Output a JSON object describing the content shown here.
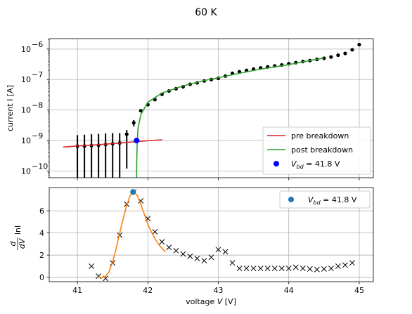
{
  "figure": {
    "title": "60 K"
  },
  "chart_data": [
    {
      "type": "scatter",
      "yscale": "log",
      "xlim": [
        40.6,
        45.2
      ],
      "ylim": [
        6e-11,
        2.2e-06
      ],
      "grid": true,
      "xlabel": "",
      "ylabel": "current I [A]",
      "yticks": [
        {
          "value": 1e-10,
          "mant": "10",
          "exp": "−10"
        },
        {
          "value": 1e-09,
          "mant": "10",
          "exp": "−9"
        },
        {
          "value": 1e-08,
          "mant": "10",
          "exp": "−8"
        },
        {
          "value": 1e-07,
          "mant": "10",
          "exp": "−7"
        },
        {
          "value": 1e-06,
          "mant": "10",
          "exp": "−6"
        }
      ],
      "legend_position": "lower right",
      "legend": [
        {
          "label": "pre breakdown",
          "color": "#d62728",
          "kind": "line"
        },
        {
          "label": "post breakdown",
          "color": "#2ca02c",
          "kind": "line"
        },
        {
          "label_prefix": "V",
          "label_sub": "bd",
          "label_suffix": " = 41.8 V",
          "color": "#0000ff",
          "kind": "dot"
        }
      ],
      "series": [
        {
          "kind": "errorbar",
          "color": "#000000",
          "points": [
            {
              "x": 41.0,
              "y": 6.5e-10,
              "lo": 5e-11,
              "hi": 1.5e-09
            },
            {
              "x": 41.1,
              "y": 6.6e-10,
              "lo": 5e-11,
              "hi": 1.55e-09
            },
            {
              "x": 41.2,
              "y": 6.8e-10,
              "lo": 5e-11,
              "hi": 1.6e-09
            },
            {
              "x": 41.3,
              "y": 7e-10,
              "lo": 5e-11,
              "hi": 1.65e-09
            },
            {
              "x": 41.4,
              "y": 7.4e-10,
              "lo": 5e-11,
              "hi": 1.7e-09
            },
            {
              "x": 41.5,
              "y": 7.8e-10,
              "lo": 5e-11,
              "hi": 1.75e-09
            },
            {
              "x": 41.6,
              "y": 8.3e-10,
              "lo": 5e-11,
              "hi": 1.75e-09
            },
            {
              "x": 41.7,
              "y": 1.6e-09,
              "lo": 1.2e-10,
              "hi": 2.2e-09
            },
            {
              "x": 41.8,
              "y": 3.8e-09,
              "lo": 2.9e-09,
              "hi": 4.7e-09
            },
            {
              "x": 41.9,
              "y": 9.5e-09
            },
            {
              "x": 42.0,
              "y": 1.5e-08
            },
            {
              "x": 42.1,
              "y": 2.2e-08
            },
            {
              "x": 42.2,
              "y": 3.3e-08
            },
            {
              "x": 42.3,
              "y": 4.2e-08
            },
            {
              "x": 42.4,
              "y": 5e-08
            },
            {
              "x": 42.5,
              "y": 5.8e-08
            },
            {
              "x": 42.6,
              "y": 7e-08
            },
            {
              "x": 42.7,
              "y": 7.8e-08
            },
            {
              "x": 42.8,
              "y": 9e-08
            },
            {
              "x": 42.9,
              "y": 1e-07
            },
            {
              "x": 43.0,
              "y": 1.1e-07
            },
            {
              "x": 43.1,
              "y": 1.3e-07
            },
            {
              "x": 43.2,
              "y": 1.6e-07
            },
            {
              "x": 43.3,
              "y": 1.8e-07
            },
            {
              "x": 43.4,
              "y": 2e-07
            },
            {
              "x": 43.5,
              "y": 2.2e-07
            },
            {
              "x": 43.6,
              "y": 2.4e-07
            },
            {
              "x": 43.7,
              "y": 2.6e-07
            },
            {
              "x": 43.8,
              "y": 2.8e-07
            },
            {
              "x": 43.9,
              "y": 3e-07
            },
            {
              "x": 44.0,
              "y": 3.3e-07
            },
            {
              "x": 44.1,
              "y": 3.6e-07
            },
            {
              "x": 44.2,
              "y": 3.9e-07
            },
            {
              "x": 44.3,
              "y": 4.2e-07
            },
            {
              "x": 44.4,
              "y": 4.6e-07
            },
            {
              "x": 44.5,
              "y": 5e-07
            },
            {
              "x": 44.6,
              "y": 5.5e-07
            },
            {
              "x": 44.7,
              "y": 6.3e-07
            },
            {
              "x": 44.8,
              "y": 7.2e-07
            },
            {
              "x": 44.9,
              "y": 9.5e-07
            },
            {
              "x": 45.0,
              "y": 1.4e-06
            }
          ]
        },
        {
          "kind": "line",
          "name": "pre breakdown",
          "color": "#d62728",
          "points": [
            [
              40.8,
              6.1e-10
            ],
            [
              41.0,
              6.6e-10
            ],
            [
              41.3,
              7.3e-10
            ],
            [
              41.6,
              8.2e-10
            ],
            [
              41.8,
              9e-10
            ],
            [
              42.0,
              9.8e-10
            ],
            [
              42.2,
              1.05e-09
            ]
          ]
        },
        {
          "kind": "line",
          "name": "post breakdown",
          "color": "#2ca02c",
          "points": [
            [
              41.84,
              6e-11
            ],
            [
              41.842,
              2e-10
            ],
            [
              41.85,
              1e-09
            ],
            [
              41.86,
              2.5e-09
            ],
            [
              41.9,
              7e-09
            ],
            [
              42.0,
              1.8e-08
            ],
            [
              42.2,
              3.6e-08
            ],
            [
              42.5,
              6.2e-08
            ],
            [
              42.8,
              9.3e-08
            ],
            [
              43.0,
              1.15e-07
            ],
            [
              43.3,
              1.6e-07
            ],
            [
              43.6,
              2.2e-07
            ],
            [
              44.0,
              3.1e-07
            ],
            [
              44.3,
              4.2e-07
            ],
            [
              44.5,
              5.1e-07
            ]
          ]
        },
        {
          "kind": "point",
          "name": "V_bd = 41.8 V",
          "color": "#0000ff",
          "points": [
            [
              41.84,
              1e-09
            ]
          ]
        }
      ]
    },
    {
      "type": "scatter",
      "yscale": "linear",
      "xlim": [
        40.6,
        45.2
      ],
      "ylim": [
        -0.4,
        8.1
      ],
      "grid": true,
      "xlabel_prefix": "voltage ",
      "xlabel_var": "V",
      "xlabel_suffix": " [V]",
      "ylabel_frac_num": "d",
      "ylabel_frac_den": "dV",
      "ylabel_rest": "lnI",
      "xticks": [
        41,
        42,
        43,
        44,
        45
      ],
      "yticks": [
        0,
        2,
        4,
        6
      ],
      "legend_position": "upper right",
      "legend": [
        {
          "label_prefix": "V",
          "label_sub": "bd",
          "label_suffix": " = 41.8 V",
          "color": "#1f77b4",
          "kind": "dot"
        }
      ],
      "series": [
        {
          "kind": "marker_x",
          "color": "#000000",
          "points": [
            [
              41.2,
              1.0
            ],
            [
              41.3,
              0.1
            ],
            [
              41.4,
              -0.1
            ],
            [
              41.5,
              1.3
            ],
            [
              41.6,
              3.8
            ],
            [
              41.7,
              6.6
            ],
            [
              41.8,
              7.7
            ],
            [
              41.9,
              6.9
            ],
            [
              42.0,
              5.3
            ],
            [
              42.1,
              4.1
            ],
            [
              42.2,
              3.2
            ],
            [
              42.3,
              2.7
            ],
            [
              42.4,
              2.4
            ],
            [
              42.5,
              2.1
            ],
            [
              42.6,
              1.9
            ],
            [
              42.7,
              1.7
            ],
            [
              42.8,
              1.5
            ],
            [
              42.9,
              1.8
            ],
            [
              43.0,
              2.5
            ],
            [
              43.1,
              2.3
            ],
            [
              43.2,
              1.3
            ],
            [
              43.3,
              0.8
            ],
            [
              43.4,
              0.8
            ],
            [
              43.5,
              0.8
            ],
            [
              43.6,
              0.8
            ],
            [
              43.7,
              0.8
            ],
            [
              43.8,
              0.8
            ],
            [
              43.9,
              0.8
            ],
            [
              44.0,
              0.8
            ],
            [
              44.1,
              0.9
            ],
            [
              44.2,
              0.8
            ],
            [
              44.3,
              0.75
            ],
            [
              44.4,
              0.7
            ],
            [
              44.5,
              0.75
            ],
            [
              44.6,
              0.8
            ],
            [
              44.7,
              1.0
            ],
            [
              44.8,
              1.1
            ],
            [
              44.9,
              1.3
            ]
          ]
        },
        {
          "kind": "line",
          "color": "#ff7f0e",
          "points": [
            [
              41.3,
              0.05
            ],
            [
              41.35,
              -0.05
            ],
            [
              41.4,
              0.1
            ],
            [
              41.45,
              0.5
            ],
            [
              41.5,
              1.4
            ],
            [
              41.55,
              2.6
            ],
            [
              41.6,
              4.0
            ],
            [
              41.65,
              5.3
            ],
            [
              41.7,
              6.5
            ],
            [
              41.75,
              7.4
            ],
            [
              41.8,
              7.7
            ],
            [
              41.85,
              7.4
            ],
            [
              41.9,
              6.6
            ],
            [
              41.95,
              5.7
            ],
            [
              42.0,
              4.8
            ],
            [
              42.05,
              4.1
            ],
            [
              42.1,
              3.5
            ],
            [
              42.15,
              3.0
            ],
            [
              42.2,
              2.6
            ],
            [
              42.25,
              2.3
            ]
          ]
        },
        {
          "kind": "point",
          "name": "V_bd = 41.8 V",
          "color": "#1f77b4",
          "points": [
            [
              41.79,
              7.7
            ]
          ]
        }
      ]
    }
  ]
}
